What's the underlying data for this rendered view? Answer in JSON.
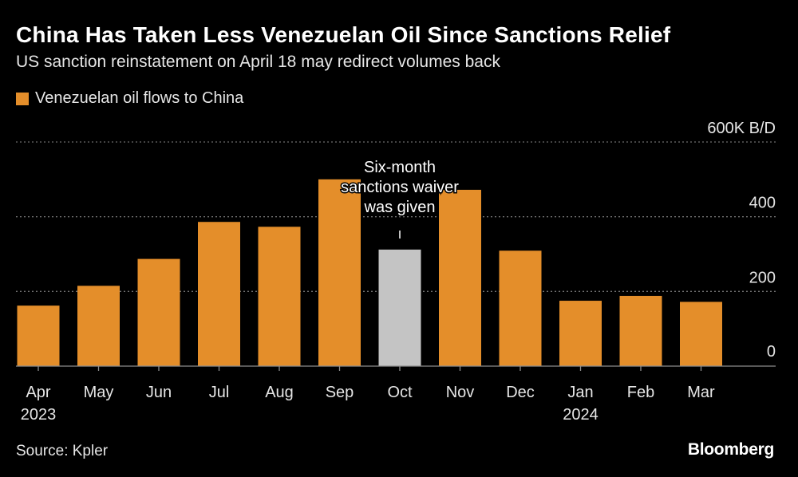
{
  "header": {
    "title": "China Has Taken Less Venezuelan Oil Since Sanctions Relief",
    "subtitle": "US sanction reinstatement on April 18 may redirect volumes back"
  },
  "legend": {
    "label": "Venezuelan oil flows to China",
    "color": "#e48e2a"
  },
  "footer": {
    "source": "Source: Kpler",
    "brand": "Bloomberg"
  },
  "colors": {
    "bar": "#e48e2a",
    "highlight_bar": "#c4c4c4",
    "grid": "#6e6e6e",
    "axis": "#8c8c8c",
    "text": "#e6e6e6"
  },
  "chart_data": {
    "type": "bar",
    "title": "China Has Taken Less Venezuelan Oil Since Sanctions Relief",
    "subtitle": "US sanction reinstatement on April 18 may redirect volumes back",
    "categories": [
      "Apr",
      "May",
      "Jun",
      "Jul",
      "Aug",
      "Sep",
      "Oct",
      "Nov",
      "Dec",
      "Jan",
      "Feb",
      "Mar"
    ],
    "year_labels": [
      "2023",
      "",
      "",
      "",
      "",
      "",
      "",
      "",
      "",
      "2024",
      "",
      ""
    ],
    "values": [
      162,
      215,
      287,
      386,
      373,
      500,
      312,
      472,
      309,
      175,
      188,
      172
    ],
    "highlight_index": 6,
    "series": [
      {
        "name": "Venezuelan oil flows to China",
        "values": [
          162,
          215,
          287,
          386,
          373,
          500,
          312,
          472,
          309,
          175,
          188,
          172
        ]
      }
    ],
    "ylim": [
      0,
      600
    ],
    "yticks": [
      0,
      200,
      400,
      600
    ],
    "ytick_labels": [
      "0",
      "200",
      "400",
      "600K B/D"
    ],
    "ylabel": "",
    "xlabel": "",
    "grid": true,
    "legend_position": "top-left",
    "annotation": {
      "index": 6,
      "lines": [
        "Six-month",
        "sanctions waiver",
        "was given"
      ]
    }
  }
}
